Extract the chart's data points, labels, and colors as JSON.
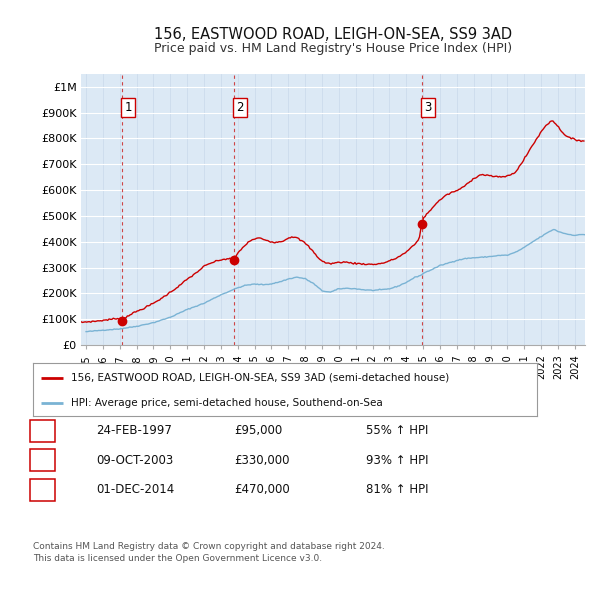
{
  "title_line1": "156, EASTWOOD ROAD, LEIGH-ON-SEA, SS9 3AD",
  "title_line2": "Price paid vs. HM Land Registry's House Price Index (HPI)",
  "plot_bg_color": "#dce9f5",
  "grid_color": "#c8d8ea",
  "ylim": [
    0,
    1050000
  ],
  "yticks": [
    0,
    100000,
    200000,
    300000,
    400000,
    500000,
    600000,
    700000,
    800000,
    900000,
    1000000
  ],
  "ytick_labels": [
    "£0",
    "£100K",
    "£200K",
    "£300K",
    "£400K",
    "£500K",
    "£600K",
    "£700K",
    "£800K",
    "£900K",
    "£1M"
  ],
  "sale_prices": [
    95000,
    330000,
    470000
  ],
  "sale_labels": [
    "1",
    "2",
    "3"
  ],
  "red_vline_dates": [
    1997.12,
    2003.75,
    2014.92
  ],
  "hpi_line_color": "#7ab3d4",
  "sale_line_color": "#cc0000",
  "sale_dot_color": "#cc0000",
  "vline_color": "#cc3333",
  "legend_label_red": "156, EASTWOOD ROAD, LEIGH-ON-SEA, SS9 3AD (semi-detached house)",
  "legend_label_blue": "HPI: Average price, semi-detached house, Southend-on-Sea",
  "table_entries": [
    {
      "num": "1",
      "date": "24-FEB-1997",
      "price": "£95,000",
      "hpi": "55% ↑ HPI"
    },
    {
      "num": "2",
      "date": "09-OCT-2003",
      "price": "£330,000",
      "hpi": "93% ↑ HPI"
    },
    {
      "num": "3",
      "date": "01-DEC-2014",
      "price": "£470,000",
      "hpi": "81% ↑ HPI"
    }
  ],
  "footer": "Contains HM Land Registry data © Crown copyright and database right 2024.\nThis data is licensed under the Open Government Licence v3.0.",
  "xlim_left": 1994.7,
  "xlim_right": 2024.6
}
